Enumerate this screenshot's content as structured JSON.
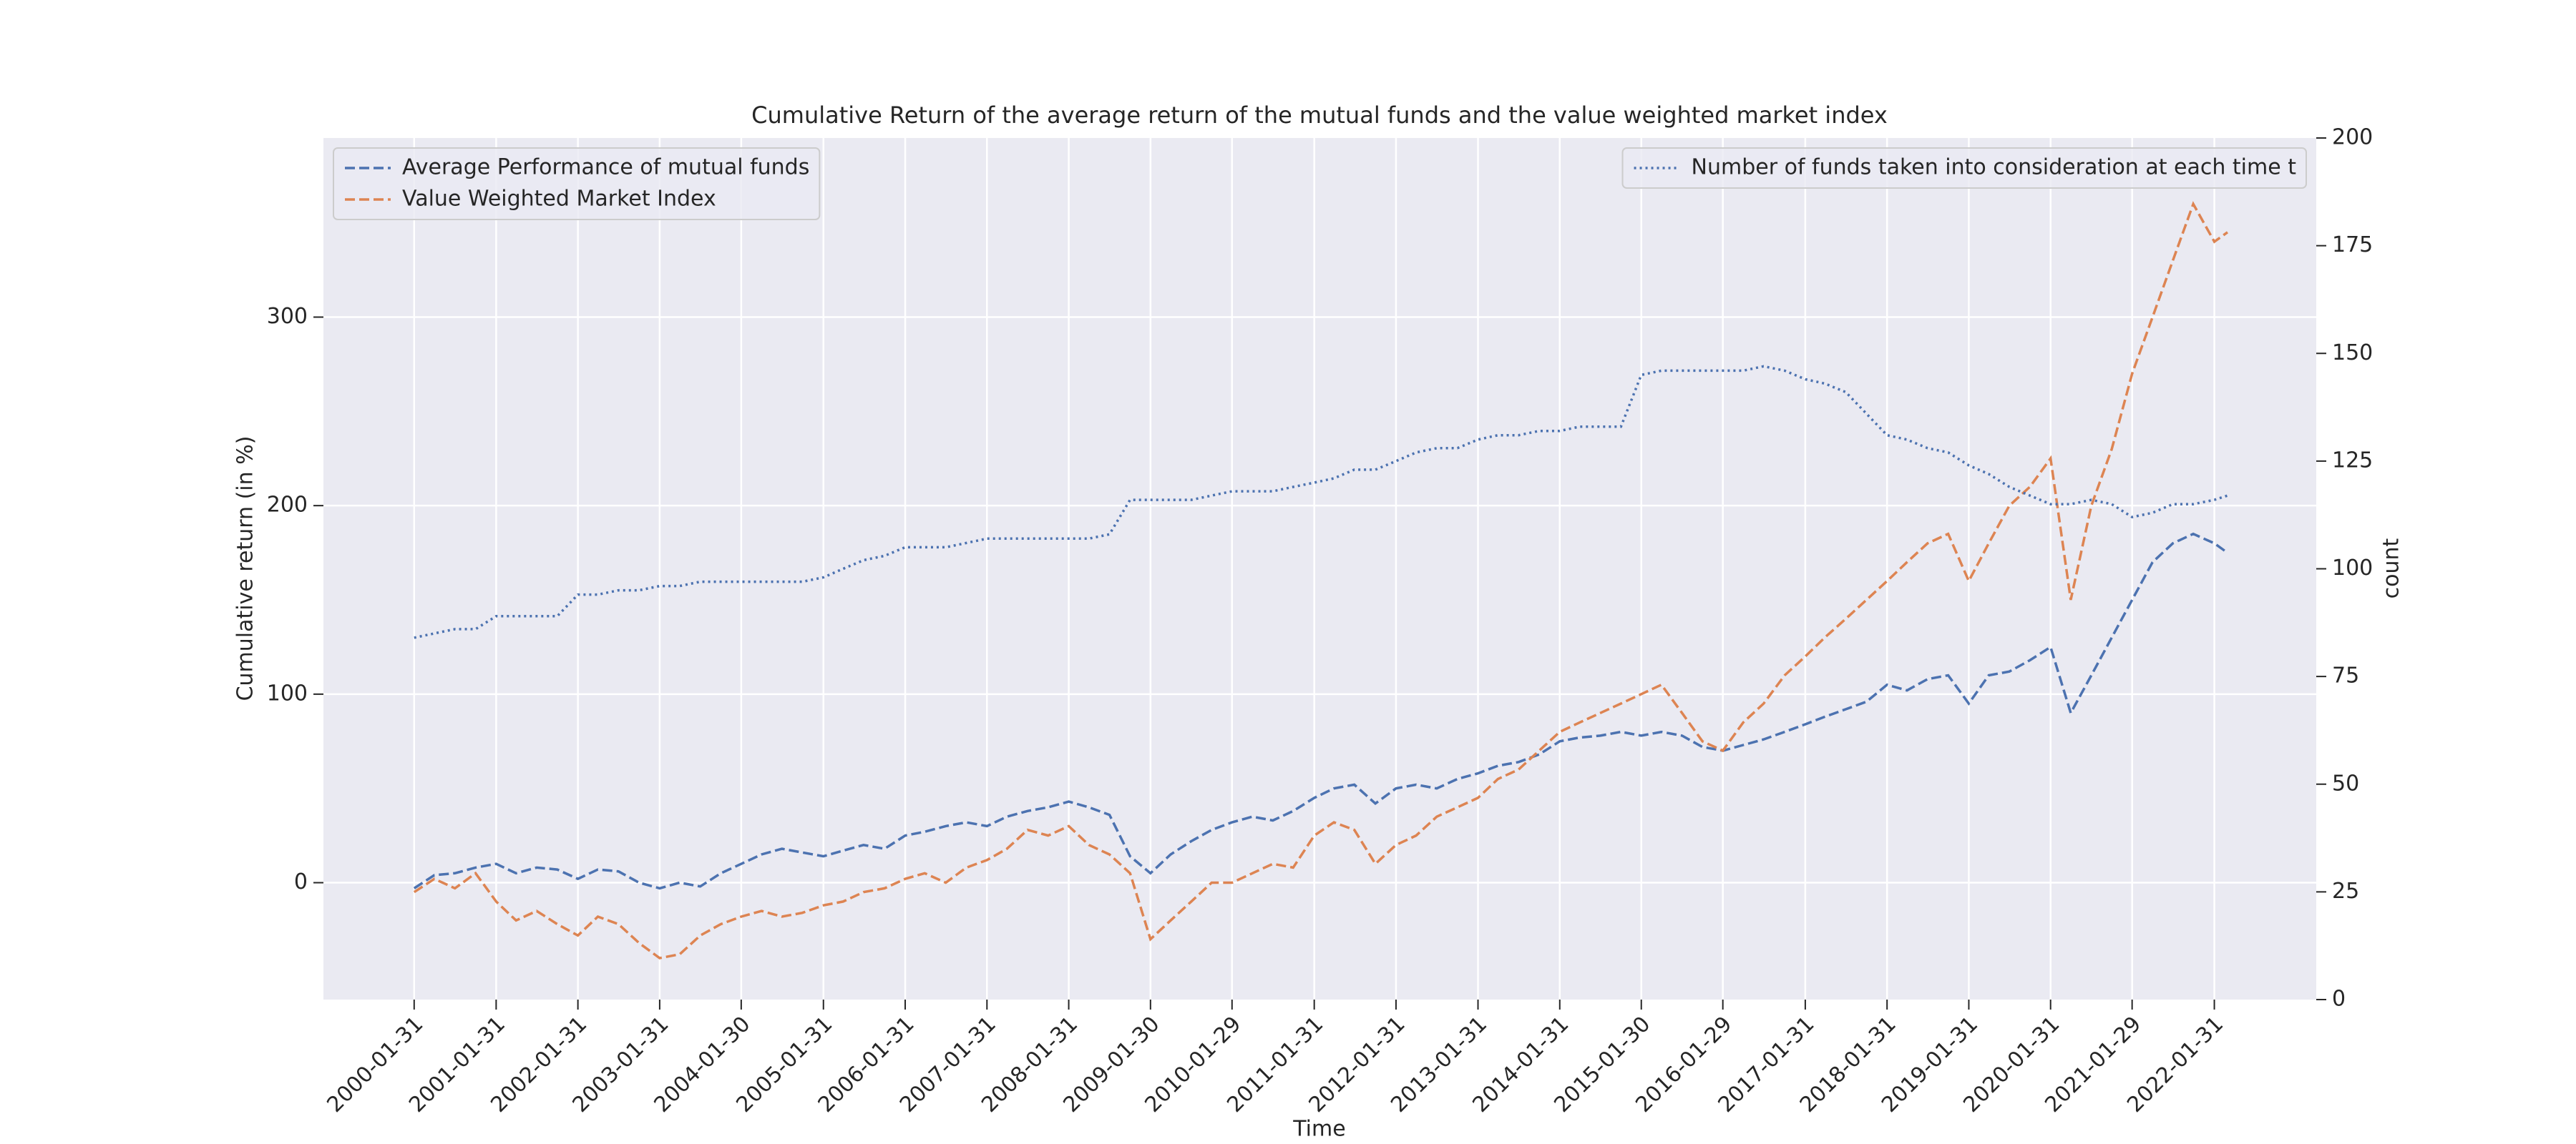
{
  "chart_data": {
    "type": "line",
    "title": "Cumulative Return of the average return of the mutual funds and the value weighted market index",
    "xlabel": "Time",
    "ylabel": "Cumulative return (in %)",
    "y2label": "count",
    "x": [
      "2000-01-31",
      "2000-04-30",
      "2000-07-31",
      "2000-10-31",
      "2001-01-31",
      "2001-04-30",
      "2001-07-31",
      "2001-10-31",
      "2002-01-31",
      "2002-04-30",
      "2002-07-31",
      "2002-10-31",
      "2003-01-31",
      "2003-04-30",
      "2003-07-31",
      "2003-10-31",
      "2004-01-30",
      "2004-04-30",
      "2004-07-30",
      "2004-10-29",
      "2005-01-31",
      "2005-04-29",
      "2005-07-29",
      "2005-10-31",
      "2006-01-31",
      "2006-04-28",
      "2006-07-31",
      "2006-10-31",
      "2007-01-31",
      "2007-04-30",
      "2007-07-31",
      "2007-10-31",
      "2008-01-31",
      "2008-04-30",
      "2008-07-31",
      "2008-10-31",
      "2009-01-30",
      "2009-04-30",
      "2009-07-31",
      "2009-10-30",
      "2010-01-29",
      "2010-04-30",
      "2010-07-30",
      "2010-10-29",
      "2011-01-31",
      "2011-04-29",
      "2011-07-29",
      "2011-10-31",
      "2012-01-31",
      "2012-04-30",
      "2012-07-31",
      "2012-10-31",
      "2013-01-31",
      "2013-04-30",
      "2013-07-31",
      "2013-10-31",
      "2014-01-31",
      "2014-04-30",
      "2014-07-31",
      "2014-10-31",
      "2015-01-30",
      "2015-04-30",
      "2015-07-31",
      "2015-10-30",
      "2016-01-29",
      "2016-04-29",
      "2016-07-29",
      "2016-10-31",
      "2017-01-31",
      "2017-04-28",
      "2017-07-31",
      "2017-10-31",
      "2018-01-31",
      "2018-04-30",
      "2018-07-31",
      "2018-10-31",
      "2019-01-31",
      "2019-04-30",
      "2019-07-31",
      "2019-10-31",
      "2020-01-31",
      "2020-04-30",
      "2020-07-31",
      "2020-10-30",
      "2021-01-29",
      "2021-04-30",
      "2021-07-30",
      "2021-10-29",
      "2022-01-31",
      "2022-03-31"
    ],
    "series": [
      {
        "name": "Average Performance of mutual funds",
        "color": "#4c72b0",
        "linestyle": "dashed",
        "axis": "y",
        "values": [
          -3,
          4,
          5,
          8,
          10,
          5,
          8,
          7,
          2,
          7,
          6,
          0,
          -3,
          0,
          -2,
          5,
          10,
          15,
          18,
          16,
          14,
          17,
          20,
          18,
          25,
          27,
          30,
          32,
          30,
          35,
          38,
          40,
          43,
          40,
          36,
          14,
          5,
          15,
          22,
          28,
          32,
          35,
          33,
          38,
          45,
          50,
          52,
          42,
          50,
          52,
          50,
          55,
          58,
          62,
          64,
          68,
          75,
          77,
          78,
          80,
          78,
          80,
          78,
          72,
          70,
          73,
          76,
          80,
          84,
          88,
          92,
          96,
          105,
          102,
          108,
          110,
          95,
          110,
          112,
          118,
          125,
          90,
          110,
          130,
          150,
          170,
          180,
          185,
          180,
          175
        ]
      },
      {
        "name": "Value Weighted Market Index",
        "color": "#dd8452",
        "linestyle": "dashed",
        "axis": "y",
        "values": [
          -5,
          2,
          -3,
          5,
          -10,
          -20,
          -15,
          -22,
          -28,
          -18,
          -22,
          -32,
          -40,
          -38,
          -28,
          -22,
          -18,
          -15,
          -18,
          -16,
          -12,
          -10,
          -5,
          -3,
          2,
          5,
          0,
          8,
          12,
          18,
          28,
          25,
          30,
          20,
          15,
          5,
          -30,
          -20,
          -10,
          0,
          0,
          5,
          10,
          8,
          25,
          32,
          28,
          10,
          20,
          25,
          35,
          40,
          45,
          55,
          60,
          70,
          80,
          85,
          90,
          95,
          100,
          105,
          90,
          75,
          70,
          85,
          95,
          110,
          120,
          130,
          140,
          150,
          160,
          170,
          180,
          185,
          160,
          180,
          200,
          210,
          225,
          150,
          200,
          230,
          270,
          300,
          330,
          360,
          340,
          345
        ]
      },
      {
        "name": "Number of funds taken into consideration at each time t",
        "color": "#4c72b0",
        "linestyle": "dotted",
        "axis": "y2",
        "values": [
          84,
          85,
          86,
          86,
          89,
          89,
          89,
          89,
          94,
          94,
          95,
          95,
          96,
          96,
          97,
          97,
          97,
          97,
          97,
          97,
          98,
          100,
          102,
          103,
          105,
          105,
          105,
          106,
          107,
          107,
          107,
          107,
          107,
          107,
          108,
          116,
          116,
          116,
          116,
          117,
          118,
          118,
          118,
          119,
          120,
          121,
          123,
          123,
          125,
          127,
          128,
          128,
          130,
          131,
          131,
          132,
          132,
          133,
          133,
          133,
          145,
          146,
          146,
          146,
          146,
          146,
          147,
          146,
          144,
          143,
          141,
          136,
          131,
          130,
          128,
          127,
          124,
          122,
          119,
          117,
          115,
          115,
          116,
          115,
          112,
          113,
          115,
          115,
          116,
          117
        ]
      }
    ],
    "xlim": [
      "1998-12-22",
      "2023-05-01"
    ],
    "xticks": [
      "2000-01-31",
      "2001-01-31",
      "2002-01-31",
      "2003-01-31",
      "2004-01-30",
      "2005-01-31",
      "2006-01-31",
      "2007-01-31",
      "2008-01-31",
      "2009-01-30",
      "2010-01-29",
      "2011-01-31",
      "2012-01-31",
      "2013-01-31",
      "2014-01-31",
      "2015-01-30",
      "2016-01-29",
      "2017-01-31",
      "2018-01-31",
      "2019-01-31",
      "2020-01-31",
      "2021-01-29",
      "2022-01-31"
    ],
    "ylim": [
      -62,
      395
    ],
    "yticks": [
      0,
      100,
      200,
      300
    ],
    "y2lim": [
      0,
      200
    ],
    "y2ticks": [
      0,
      25,
      50,
      75,
      100,
      125,
      150,
      175,
      200
    ],
    "grid": true,
    "legend": {
      "y": "upper left",
      "y2": "upper right"
    }
  }
}
